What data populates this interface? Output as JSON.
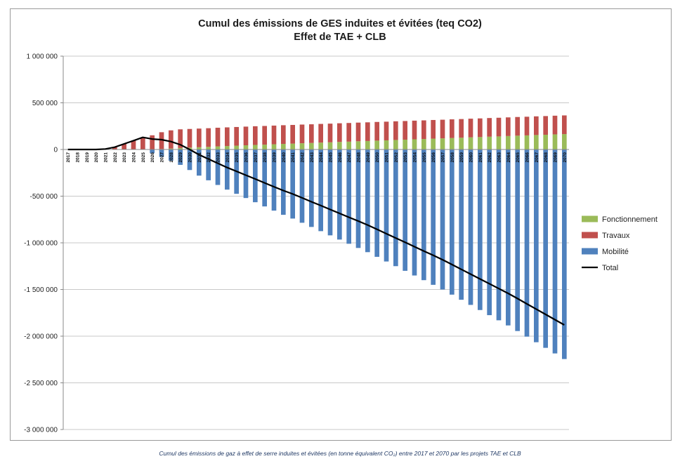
{
  "chart_data": {
    "type": "bar",
    "stacked": true,
    "title": "Cumul des émissions de GES induites et évitées (teq CO2)",
    "subtitle": "Effet de TAE + CLB",
    "ylim": [
      -3000000,
      1000000
    ],
    "yticks": [
      1000000,
      500000,
      0,
      -500000,
      -1000000,
      -1500000,
      -2000000,
      -2500000,
      -3000000
    ],
    "ytick_labels": [
      "1 000 000",
      "500 000",
      "0",
      "-500 000",
      "-1 000 000",
      "-1 500 000",
      "-2 000 000",
      "-2 500 000",
      "-3 000 000"
    ],
    "grid": true,
    "legend_position": "right",
    "categories": [
      "2017",
      "2018",
      "2019",
      "2020",
      "2021",
      "2022",
      "2023",
      "2024",
      "2025",
      "2026",
      "2027",
      "2028",
      "2029",
      "2030",
      "2031",
      "2032",
      "2033",
      "2034",
      "2035",
      "2036",
      "2037",
      "2038",
      "2039",
      "2040",
      "2041",
      "2042",
      "2043",
      "2044",
      "2045",
      "2046",
      "2047",
      "2048",
      "2049",
      "2050",
      "2051",
      "2052",
      "2053",
      "2054",
      "2055",
      "2056",
      "2057",
      "2058",
      "2059",
      "2060",
      "2061",
      "2062",
      "2063",
      "2064",
      "2065",
      "2066",
      "2067",
      "2068",
      "2069",
      "2070"
    ],
    "series": [
      {
        "name": "Fonctionnement",
        "color": "#9bbb59",
        "type": "bar",
        "values": [
          0,
          0,
          0,
          0,
          0,
          0,
          0,
          0,
          0,
          2000,
          5000,
          10000,
          16000,
          20000,
          24000,
          28000,
          33000,
          37000,
          41000,
          45000,
          49000,
          52000,
          56000,
          60000,
          63000,
          67000,
          70000,
          74000,
          77000,
          81000,
          84000,
          88000,
          91000,
          95000,
          98000,
          102000,
          105000,
          109000,
          112000,
          116000,
          119000,
          123000,
          126000,
          130000,
          133000,
          137000,
          140000,
          144000,
          148000,
          151000,
          155000,
          158000,
          162000,
          165000
        ]
      },
      {
        "name": "Travaux",
        "color": "#c0504d",
        "type": "bar",
        "values": [
          0,
          0,
          0,
          0,
          5000,
          25000,
          60000,
          95000,
          130000,
          150000,
          180000,
          195000,
          200000,
          200000,
          200000,
          200000,
          200000,
          200000,
          200000,
          200000,
          200000,
          200000,
          200000,
          200000,
          200000,
          200000,
          200000,
          200000,
          200000,
          200000,
          200000,
          200000,
          200000,
          200000,
          200000,
          200000,
          200000,
          200000,
          200000,
          200000,
          200000,
          200000,
          200000,
          200000,
          200000,
          200000,
          200000,
          200000,
          200000,
          200000,
          200000,
          200000,
          200000,
          200000
        ]
      },
      {
        "name": "Mobilité",
        "color": "#4f81bd",
        "type": "bar",
        "values": [
          0,
          0,
          0,
          0,
          0,
          0,
          0,
          0,
          0,
          -40000,
          -80000,
          -120000,
          -165000,
          -220000,
          -280000,
          -330000,
          -380000,
          -430000,
          -475000,
          -520000,
          -565000,
          -610000,
          -655000,
          -700000,
          -740000,
          -785000,
          -830000,
          -875000,
          -920000,
          -965000,
          -1010000,
          -1055000,
          -1100000,
          -1150000,
          -1200000,
          -1250000,
          -1300000,
          -1350000,
          -1400000,
          -1450000,
          -1500000,
          -1555000,
          -1610000,
          -1665000,
          -1720000,
          -1775000,
          -1830000,
          -1885000,
          -1945000,
          -2005000,
          -2065000,
          -2125000,
          -2185000,
          -2245000
        ]
      },
      {
        "name": "Total",
        "color": "#000000",
        "type": "line",
        "values": [
          0,
          0,
          0,
          0,
          5000,
          25000,
          60000,
          95000,
          130000,
          112000,
          105000,
          85000,
          51000,
          0,
          -56000,
          -102000,
          -147000,
          -193000,
          -234000,
          -275000,
          -316000,
          -358000,
          -399000,
          -440000,
          -477000,
          -518000,
          -560000,
          -601000,
          -643000,
          -684000,
          -726000,
          -767000,
          -809000,
          -855000,
          -902000,
          -948000,
          -995000,
          -1041000,
          -1088000,
          -1134000,
          -1181000,
          -1232000,
          -1284000,
          -1335000,
          -1387000,
          -1438000,
          -1490000,
          -1541000,
          -1597000,
          -1654000,
          -1710000,
          -1767000,
          -1823000,
          -1880000
        ]
      }
    ]
  },
  "caption": "Cumul des émissions de gaz à effet de serre induites et évitées (en tonne équivalent CO₂) entre 2017 et 2070 par les projets TAE et CLB"
}
